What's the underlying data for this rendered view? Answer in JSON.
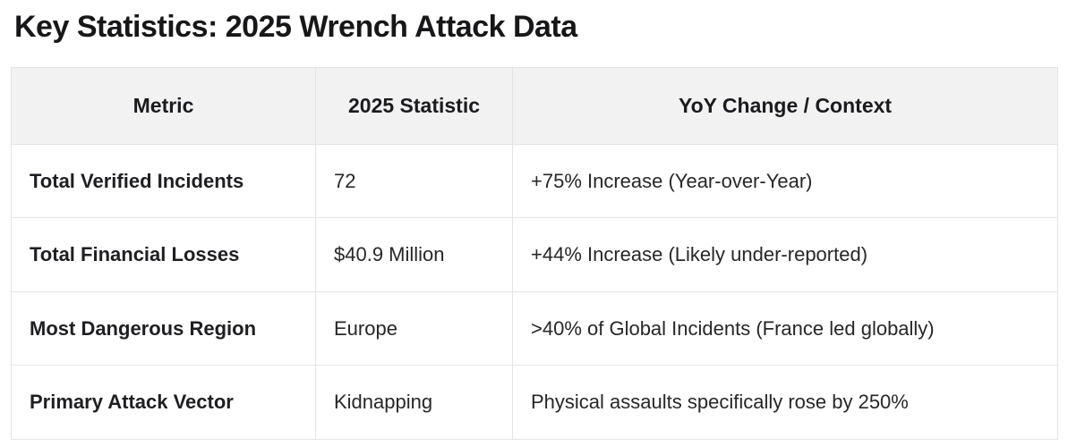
{
  "page": {
    "title": "Key Statistics: 2025 Wrench Attack Data"
  },
  "colors": {
    "header_background": "#f2f2f3",
    "table_border": "#e4e4e7",
    "title_text": "#17171a",
    "body_text": "#27272a"
  },
  "table": {
    "headers": [
      "Metric",
      "2025 Statistic",
      "YoY Change / Context"
    ],
    "rows": [
      [
        "Total Verified Incidents",
        "72",
        "+75% Increase (Year-over-Year)"
      ],
      [
        "Total Financial Losses",
        "$40.9 Million",
        "+44% Increase (Likely under-reported)"
      ],
      [
        "Most Dangerous Region",
        "Europe",
        ">40% of Global Incidents (France led globally)"
      ],
      [
        "Primary Attack Vector",
        "Kidnapping",
        "Physical assaults specifically rose by 250%"
      ]
    ]
  }
}
